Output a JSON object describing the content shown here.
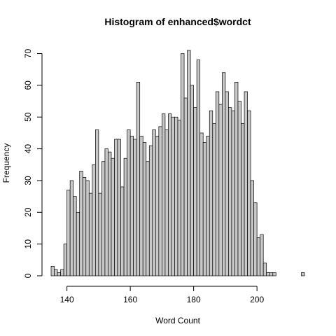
{
  "chart_data": {
    "type": "bar",
    "title": "Histogram of enhanced$wordct",
    "xlabel": "Word Count",
    "ylabel": "Frequency",
    "bin_width": 1,
    "x_start": 135,
    "xlim": [
      135,
      215
    ],
    "ylim": [
      0,
      71
    ],
    "x_ticks": [
      140,
      160,
      180,
      200
    ],
    "y_ticks": [
      0,
      10,
      20,
      30,
      40,
      50,
      60,
      70
    ],
    "values": [
      3,
      2,
      1,
      2,
      10,
      27,
      30,
      25,
      20,
      33,
      31,
      30,
      26,
      35,
      46,
      26,
      36,
      40,
      39,
      37,
      43,
      43,
      28,
      37,
      46,
      44,
      43,
      61,
      44,
      42,
      36,
      41,
      46,
      44,
      47,
      51,
      46,
      51,
      50,
      50,
      49,
      70,
      56,
      71,
      60,
      53,
      68,
      45,
      42,
      44,
      52,
      48,
      58,
      54,
      64,
      58,
      53,
      52,
      61,
      55,
      48,
      58,
      52,
      30,
      23,
      12,
      13,
      4,
      1,
      1,
      1,
      0,
      0,
      0,
      0,
      0,
      0,
      0,
      0,
      1
    ],
    "grid": false,
    "legend": "none"
  }
}
